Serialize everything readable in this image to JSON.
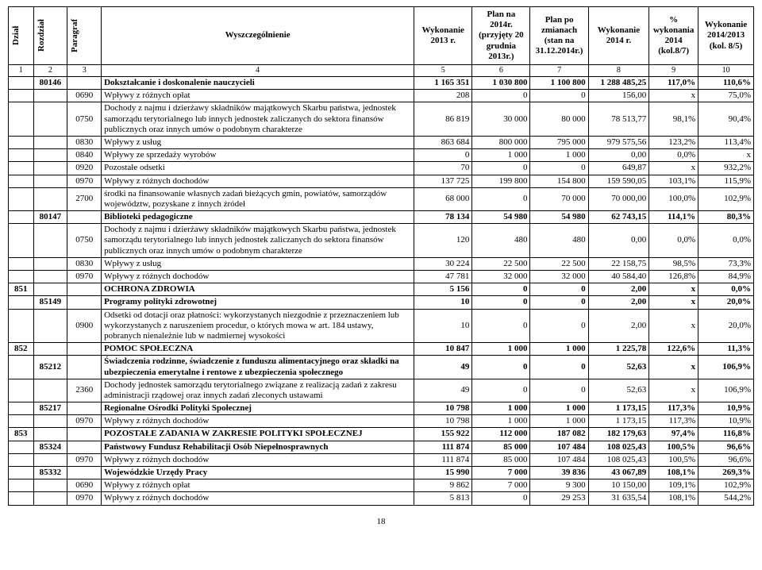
{
  "headers": {
    "h1": "Dział",
    "h2": "Rozdział",
    "h3": "Paragraf",
    "h4": "Wyszczególnienie",
    "h5": "Wykonanie 2013 r.",
    "h6": "Plan na 2014r. (przyjęty 20 grudnia 2013r.)",
    "h7": "Plan po zmianach (stan na 31.12.2014r.)",
    "h8": "Wykonanie 2014 r.",
    "h9": "% wykonania 2014 (kol.8/7)",
    "h10": "Wykonanie 2014/2013 (kol. 8/5)"
  },
  "numrow": [
    "1",
    "2",
    "3",
    "4",
    "5",
    "6",
    "7",
    "8",
    "9",
    "10"
  ],
  "rows": [
    {
      "cls": "b",
      "c1": "",
      "c2": "80146",
      "c3": "",
      "c4": "Dokształcanie i doskonalenie nauczycieli",
      "c5": "1 165 351",
      "c6": "1 030 800",
      "c7": "1 100 800",
      "c8": "1 288 485,25",
      "c9": "117,0%",
      "c10": "110,6%"
    },
    {
      "c1": "",
      "c2": "",
      "c3": "0690",
      "c4": "Wpływy z różnych opłat",
      "c5": "208",
      "c6": "0",
      "c7": "0",
      "c8": "156,00",
      "c9": "x",
      "c10": "75,0%"
    },
    {
      "c1": "",
      "c2": "",
      "c3": "0750",
      "c4": "Dochody z najmu i dzierżawy składników majątkowych Skarbu państwa, jednostek samorządu terytorialnego lub innych jednostek zaliczanych do sektora finansów publicznych oraz innych umów o podobnym charakterze",
      "c5": "86 819",
      "c6": "30 000",
      "c7": "80 000",
      "c8": "78 513,77",
      "c9": "98,1%",
      "c10": "90,4%"
    },
    {
      "c1": "",
      "c2": "",
      "c3": "0830",
      "c4": "Wpływy z usług",
      "c5": "863 684",
      "c6": "800 000",
      "c7": "795 000",
      "c8": "979 575,56",
      "c9": "123,2%",
      "c10": "113,4%"
    },
    {
      "c1": "",
      "c2": "",
      "c3": "0840",
      "c4": "Wpływy ze sprzedaży wyrobów",
      "c5": "0",
      "c6": "1 000",
      "c7": "1 000",
      "c8": "0,00",
      "c9": "0,0%",
      "c10": "x"
    },
    {
      "c1": "",
      "c2": "",
      "c3": "0920",
      "c4": "Pozostałe odsetki",
      "c5": "70",
      "c6": "0",
      "c7": "0",
      "c8": "649,87",
      "c9": "x",
      "c10": "932,2%"
    },
    {
      "c1": "",
      "c2": "",
      "c3": "0970",
      "c4": "Wpływy z różnych dochodów",
      "c5": "137 725",
      "c6": "199 800",
      "c7": "154 800",
      "c8": "159 590,05",
      "c9": "103,1%",
      "c10": "115,9%"
    },
    {
      "c1": "",
      "c2": "",
      "c3": "2700",
      "c4": "środki na finansowanie własnych zadań bieżących gmin, powiatów, samorządów województw, pozyskane z innych źródeł",
      "c5": "68 000",
      "c6": "0",
      "c7": "70 000",
      "c8": "70 000,00",
      "c9": "100,0%",
      "c10": "102,9%"
    },
    {
      "cls": "b",
      "c1": "",
      "c2": "80147",
      "c3": "",
      "c4": "Biblioteki pedagogiczne",
      "c5": "78 134",
      "c6": "54 980",
      "c7": "54 980",
      "c8": "62 743,15",
      "c9": "114,1%",
      "c10": "80,3%"
    },
    {
      "c1": "",
      "c2": "",
      "c3": "0750",
      "c4": "Dochody z najmu i dzierżawy składników majątkowych Skarbu państwa, jednostek samorządu terytorialnego lub innych jednostek zaliczanych do sektora finansów publicznych oraz innych umów o podobnym charakterze",
      "c5": "120",
      "c6": "480",
      "c7": "480",
      "c8": "0,00",
      "c9": "0,0%",
      "c10": "0,0%"
    },
    {
      "c1": "",
      "c2": "",
      "c3": "0830",
      "c4": "Wpływy z usług",
      "c5": "30 224",
      "c6": "22 500",
      "c7": "22 500",
      "c8": "22 158,75",
      "c9": "98,5%",
      "c10": "73,3%"
    },
    {
      "c1": "",
      "c2": "",
      "c3": "0970",
      "c4": "Wpływy z różnych dochodów",
      "c5": "47 781",
      "c6": "32 000",
      "c7": "32 000",
      "c8": "40 584,40",
      "c9": "126,8%",
      "c10": "84,9%"
    },
    {
      "cls": "b",
      "c1": "851",
      "c2": "",
      "c3": "",
      "c4": "OCHRONA ZDROWIA",
      "c4c": "c",
      "c5": "5 156",
      "c6": "0",
      "c7": "0",
      "c8": "2,00",
      "c9": "x",
      "c10": "0,0%"
    },
    {
      "cls": "b",
      "c1": "",
      "c2": "85149",
      "c3": "",
      "c4": "Programy polityki zdrowotnej",
      "c5": "10",
      "c6": "0",
      "c7": "0",
      "c8": "2,00",
      "c9": "x",
      "c10": "20,0%"
    },
    {
      "c1": "",
      "c2": "",
      "c3": "0900",
      "c4": "Odsetki od dotacji oraz płatności: wykorzystanych niezgodnie z przeznaczeniem lub wykorzystanych z naruszeniem procedur, o których mowa w art. 184 ustawy, pobranych nienależnie lub w nadmiernej wysokości",
      "c5": "10",
      "c6": "0",
      "c7": "0",
      "c8": "2,00",
      "c9": "x",
      "c10": "20,0%"
    },
    {
      "cls": "b",
      "c1": "852",
      "c2": "",
      "c3": "",
      "c4": "POMOC SPOŁECZNA",
      "c4c": "c",
      "c5": "10 847",
      "c6": "1 000",
      "c7": "1 000",
      "c8": "1 225,78",
      "c9": "122,6%",
      "c10": "11,3%"
    },
    {
      "cls": "b",
      "c1": "",
      "c2": "85212",
      "c3": "",
      "c4": "Świadczenia rodzinne, świadczenie z funduszu alimentacyjnego oraz składki na ubezpieczenia emerytalne i rentowe z ubezpieczenia społecznego",
      "c5": "49",
      "c6": "0",
      "c7": "0",
      "c8": "52,63",
      "c9": "x",
      "c10": "106,9%"
    },
    {
      "c1": "",
      "c2": "",
      "c3": "2360",
      "c4": "Dochody jednostek samorządu terytorialnego związane z realizacją zadań z zakresu administracji rządowej oraz innych zadań zleconych ustawami",
      "c5": "49",
      "c6": "0",
      "c7": "0",
      "c8": "52,63",
      "c9": "x",
      "c10": "106,9%"
    },
    {
      "cls": "b",
      "c1": "",
      "c2": "85217",
      "c3": "",
      "c4": "Regionalne Ośrodki Polityki Społecznej",
      "c5": "10 798",
      "c6": "1 000",
      "c7": "1 000",
      "c8": "1 173,15",
      "c9": "117,3%",
      "c10": "10,9%"
    },
    {
      "c1": "",
      "c2": "",
      "c3": "0970",
      "c4": "Wpływy z różnych dochodów",
      "c5": "10 798",
      "c6": "1 000",
      "c7": "1 000",
      "c8": "1 173,15",
      "c9": "117,3%",
      "c10": "10,9%"
    },
    {
      "cls": "b",
      "c1": "853",
      "c2": "",
      "c3": "",
      "c4": "POZOSTAŁE ZADANIA W ZAKRESIE POLITYKI SPOŁECZNEJ",
      "c4c": "c",
      "c5": "155 922",
      "c6": "112 000",
      "c7": "187 082",
      "c8": "182 179,63",
      "c9": "97,4%",
      "c10": "116,8%"
    },
    {
      "cls": "b",
      "c1": "",
      "c2": "85324",
      "c3": "",
      "c4": "Państwowy Fundusz Rehabilitacji Osób Niepełnosprawnych",
      "c5": "111 874",
      "c6": "85 000",
      "c7": "107 484",
      "c8": "108 025,43",
      "c9": "100,5%",
      "c10": "96,6%"
    },
    {
      "c1": "",
      "c2": "",
      "c3": "0970",
      "c4": "Wpływy z różnych dochodów",
      "c5": "111 874",
      "c6": "85 000",
      "c7": "107 484",
      "c8": "108 025,43",
      "c9": "100,5%",
      "c10": "96,6%"
    },
    {
      "cls": "b",
      "c1": "",
      "c2": "85332",
      "c3": "",
      "c4": "Wojewódzkie Urzędy Pracy",
      "c5": "15 990",
      "c6": "7 000",
      "c7": "39 836",
      "c8": "43 067,89",
      "c9": "108,1%",
      "c10": "269,3%"
    },
    {
      "c1": "",
      "c2": "",
      "c3": "0690",
      "c4": "Wpływy z różnych opłat",
      "c5": "9 862",
      "c6": "7 000",
      "c7": "9 300",
      "c8": "10 150,00",
      "c9": "109,1%",
      "c10": "102,9%"
    },
    {
      "c1": "",
      "c2": "",
      "c3": "0970",
      "c4": "Wpływy z różnych dochodów",
      "c5": "5 813",
      "c6": "0",
      "c7": "29 253",
      "c8": "31 635,54",
      "c9": "108,1%",
      "c10": "544,2%"
    }
  ],
  "page": "18"
}
